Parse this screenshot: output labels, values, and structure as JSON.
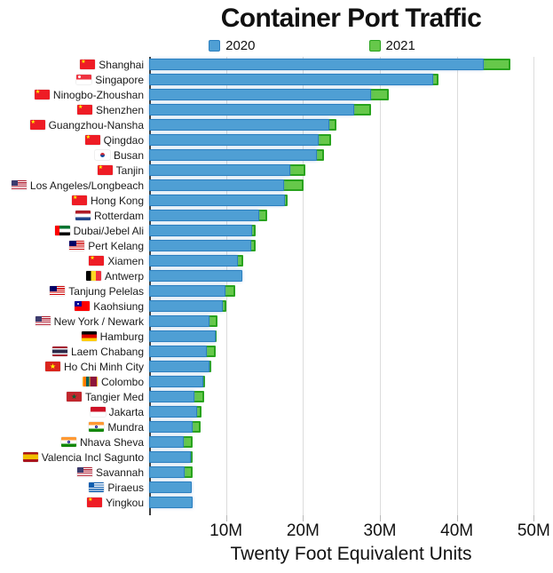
{
  "title": "Container Port Traffic",
  "xlabel": "Twenty Foot Equivalent Units",
  "legend": [
    {
      "label": "2020",
      "color": "#4F9FD4",
      "border": "#2B7FC0"
    },
    {
      "label": "2021",
      "color": "#66C84A",
      "border": "#28A31D"
    }
  ],
  "chart_data": {
    "type": "bar",
    "orientation": "horizontal",
    "title": "Container Port Traffic",
    "xlabel": "Twenty Foot Equivalent Units",
    "unit": "TEU (millions)",
    "grid": true,
    "legend_position": "top",
    "series_names": [
      "2020",
      "2021"
    ],
    "xlim": [
      0,
      52.5
    ],
    "xticks": [
      {
        "label": "10M",
        "value": 10
      },
      {
        "label": "20M",
        "value": 20
      },
      {
        "label": "30M",
        "value": 30
      },
      {
        "label": "40M",
        "value": 40
      },
      {
        "label": "50M",
        "value": 50
      }
    ],
    "rows": [
      {
        "port": "Shanghai",
        "flag": "cn",
        "y2020": 43.5,
        "y2021": 47.0
      },
      {
        "port": "Singapore",
        "flag": "sg",
        "y2020": 36.9,
        "y2021": 37.6
      },
      {
        "port": "Ninogbo-Zhoushan",
        "flag": "cn",
        "y2020": 28.8,
        "y2021": 31.1
      },
      {
        "port": "Shenzhen",
        "flag": "cn",
        "y2020": 26.6,
        "y2021": 28.8
      },
      {
        "port": "Guangzhou-Nansha",
        "flag": "cn",
        "y2020": 23.4,
        "y2021": 24.3
      },
      {
        "port": "Qingdao",
        "flag": "cn",
        "y2020": 22.0,
        "y2021": 23.7
      },
      {
        "port": "Busan",
        "flag": "kr",
        "y2020": 21.8,
        "y2021": 22.7
      },
      {
        "port": "Tanjin",
        "flag": "cn",
        "y2020": 18.4,
        "y2021": 20.3
      },
      {
        "port": "Los Angeles/Longbeach",
        "flag": "us",
        "y2020": 17.5,
        "y2021": 20.1
      },
      {
        "port": "Hong Kong",
        "flag": "cn",
        "y2020": 17.6,
        "y2021": 18.0
      },
      {
        "port": "Rotterdam",
        "flag": "nl",
        "y2020": 14.3,
        "y2021": 15.3
      },
      {
        "port": "Dubai/Jebel Ali",
        "flag": "ae",
        "y2020": 13.4,
        "y2021": 13.8
      },
      {
        "port": "Pert Kelang",
        "flag": "my",
        "y2020": 13.3,
        "y2021": 13.9
      },
      {
        "port": "Xiamen",
        "flag": "cn",
        "y2020": 11.5,
        "y2021": 12.2
      },
      {
        "port": "Antwerp",
        "flag": "be",
        "y2020": 12.1,
        "y2021": 12.0
      },
      {
        "port": "Tanjung Pelelas",
        "flag": "my",
        "y2020": 9.9,
        "y2021": 11.2
      },
      {
        "port": "Kaohsiung",
        "flag": "tw",
        "y2020": 9.6,
        "y2021": 10.0
      },
      {
        "port": "New York / Newark",
        "flag": "us",
        "y2020": 7.8,
        "y2021": 8.9
      },
      {
        "port": "Hamburg",
        "flag": "de",
        "y2020": 8.7,
        "y2021": 8.8
      },
      {
        "port": "Laem Chabang",
        "flag": "th",
        "y2020": 7.5,
        "y2021": 8.6
      },
      {
        "port": "Ho Chi Minh City",
        "flag": "vn",
        "y2020": 7.9,
        "y2021": 8.1
      },
      {
        "port": "Colombo",
        "flag": "lk",
        "y2020": 7.0,
        "y2021": 7.3
      },
      {
        "port": "Tangier Med",
        "flag": "ma",
        "y2020": 5.9,
        "y2021": 7.2
      },
      {
        "port": "Jakarta",
        "flag": "id",
        "y2020": 6.2,
        "y2021": 6.8
      },
      {
        "port": "Mundra",
        "flag": "in",
        "y2020": 5.7,
        "y2021": 6.7
      },
      {
        "port": "Nhava Sheva",
        "flag": "in",
        "y2020": 4.5,
        "y2021": 5.7
      },
      {
        "port": "Valencia Incl Sagunto",
        "flag": "es",
        "y2020": 5.4,
        "y2021": 5.7
      },
      {
        "port": "Savannah",
        "flag": "us",
        "y2020": 4.6,
        "y2021": 5.7
      },
      {
        "port": "Piraeus",
        "flag": "gr",
        "y2020": 5.5,
        "y2021": 5.3
      },
      {
        "port": "Yingkou",
        "flag": "cn",
        "y2020": 5.7,
        "y2021": 5.2
      }
    ]
  }
}
